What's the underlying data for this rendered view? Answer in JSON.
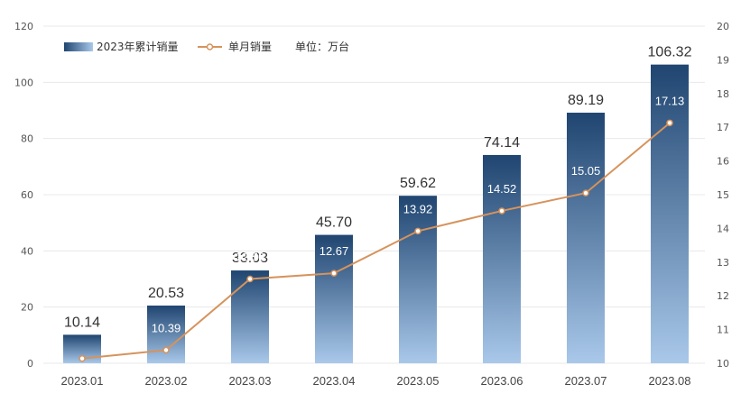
{
  "legend": {
    "bar_series": "2023年累计销量",
    "line_series": "单月销量",
    "unit": "单位：万台"
  },
  "colors": {
    "bar_top": "#1f4570",
    "bar_bottom": "#a9c8ea",
    "line": "#d6935c",
    "highlight_label": "#a52a2a"
  },
  "chart_data": {
    "type": "bar",
    "categories": [
      "2023.01",
      "2023.02",
      "2023.03",
      "2023.04",
      "2023.05",
      "2023.06",
      "2023.07",
      "2023.08"
    ],
    "series": [
      {
        "name": "2023年累计销量",
        "type": "bar",
        "axis": "left",
        "values": [
          10.14,
          20.53,
          33.03,
          45.7,
          59.62,
          74.14,
          89.19,
          106.32
        ],
        "labels": [
          "10.14",
          "20.53",
          "33.03",
          "45.70",
          "59.62",
          "74.14",
          "89.19",
          "106.32"
        ]
      },
      {
        "name": "单月销量",
        "type": "line",
        "axis": "right",
        "values": [
          10.14,
          10.39,
          12.5,
          12.67,
          13.92,
          14.52,
          15.05,
          17.13
        ],
        "labels": [
          "",
          "10.39",
          "12.50",
          "12.67",
          "13.92",
          "14.52",
          "15.05",
          "17.13"
        ]
      }
    ],
    "y_left": {
      "lim": [
        0,
        120
      ],
      "ticks": [
        "0",
        "20",
        "40",
        "60",
        "80",
        "100",
        "120"
      ]
    },
    "y_right": {
      "lim": [
        10,
        20
      ],
      "ticks": [
        "10",
        "11",
        "12",
        "13",
        "14",
        "15",
        "16",
        "17",
        "18",
        "19",
        "20"
      ]
    },
    "grid": true,
    "legend_position": "top-left"
  }
}
